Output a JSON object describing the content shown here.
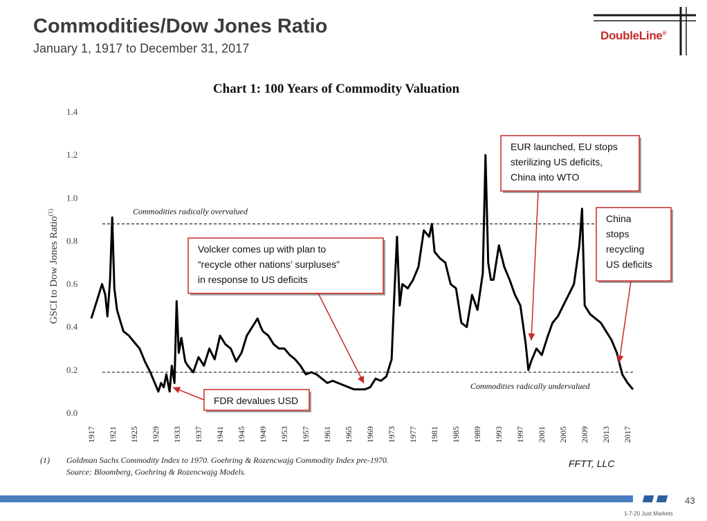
{
  "header": {
    "title": "Commodities/Dow Jones Ratio",
    "subtitle": "January 1, 1917 to December 31, 2017",
    "logo_text": "DoubleLine",
    "logo_mark": "®"
  },
  "chart_data": {
    "type": "line",
    "title": "Chart 1: 100 Years of Commodity Valuation",
    "ylabel": "GSCI to Dow Jones Ratio",
    "ylabel_sup": "(1)",
    "ylim": [
      0,
      1.4
    ],
    "xlim": [
      1917,
      2018
    ],
    "y_ticks": [
      "0.0",
      "0.2",
      "0.4",
      "0.6",
      "0.8",
      "1.0",
      "1.2",
      "1.4"
    ],
    "y_tick_values": [
      0,
      0.2,
      0.4,
      0.6,
      0.8,
      1.0,
      1.2,
      1.4
    ],
    "x_ticks": [
      "1917",
      "1921",
      "1925",
      "1929",
      "1933",
      "1937",
      "1941",
      "1945",
      "1949",
      "1953",
      "1957",
      "1961",
      "1965",
      "1969",
      "1973",
      "1977",
      "1981",
      "1985",
      "1989",
      "1993",
      "1997",
      "2001",
      "2005",
      "2009",
      "2013",
      "2017"
    ],
    "reference_lines": [
      {
        "value": 0.88,
        "label": "Commodities radically overvalued"
      },
      {
        "value": 0.19,
        "label": "Commodities radically undervalued"
      }
    ],
    "series": [
      {
        "x": [
          1917,
          1918,
          1919,
          1919.6,
          1920,
          1920.5,
          1920.9,
          1921.3,
          1921.8,
          1922.5,
          1923,
          1924,
          1925,
          1926,
          1927,
          1928,
          1929,
          1929.5,
          1930,
          1930.5,
          1931,
          1931.6,
          1932,
          1932.5,
          1932.9,
          1933.3,
          1933.8,
          1934.5,
          1935,
          1936,
          1937,
          1938,
          1939,
          1940,
          1941,
          1942,
          1943,
          1944,
          1945,
          1946,
          1947,
          1948,
          1948.6,
          1949,
          1950,
          1951,
          1952,
          1953,
          1954,
          1955,
          1956,
          1957,
          1958,
          1959,
          1960,
          1961,
          1962,
          1963,
          1964,
          1965,
          1966,
          1967,
          1968,
          1969,
          1970,
          1971,
          1972,
          1973,
          1973.5,
          1974,
          1974.5,
          1975,
          1976,
          1977,
          1978,
          1979,
          1980,
          1980.5,
          1981,
          1982,
          1983,
          1984,
          1985,
          1986,
          1987,
          1988,
          1989,
          1990,
          1990.5,
          1991,
          1991.5,
          1992,
          1993,
          1994,
          1995,
          1996,
          1997,
          1998,
          1998.5,
          1999,
          2000,
          2001,
          2002,
          2003,
          2004,
          2005,
          2006,
          2007,
          2008,
          2008.5,
          2009,
          2010,
          2011,
          2012,
          2013,
          2014,
          2015,
          2016,
          2017,
          2018
        ],
        "y": [
          0.44,
          0.52,
          0.6,
          0.55,
          0.45,
          0.62,
          0.91,
          0.58,
          0.48,
          0.42,
          0.38,
          0.36,
          0.33,
          0.3,
          0.24,
          0.19,
          0.13,
          0.1,
          0.14,
          0.12,
          0.18,
          0.1,
          0.22,
          0.14,
          0.52,
          0.28,
          0.35,
          0.24,
          0.22,
          0.19,
          0.26,
          0.22,
          0.3,
          0.25,
          0.36,
          0.32,
          0.3,
          0.24,
          0.28,
          0.36,
          0.4,
          0.44,
          0.4,
          0.38,
          0.36,
          0.32,
          0.3,
          0.3,
          0.27,
          0.25,
          0.22,
          0.18,
          0.19,
          0.18,
          0.16,
          0.14,
          0.15,
          0.14,
          0.13,
          0.12,
          0.11,
          0.11,
          0.11,
          0.12,
          0.16,
          0.15,
          0.17,
          0.25,
          0.55,
          0.82,
          0.5,
          0.6,
          0.58,
          0.62,
          0.68,
          0.85,
          0.82,
          0.88,
          0.75,
          0.72,
          0.7,
          0.6,
          0.58,
          0.42,
          0.4,
          0.55,
          0.48,
          0.65,
          1.2,
          0.7,
          0.62,
          0.62,
          0.78,
          0.68,
          0.62,
          0.55,
          0.5,
          0.32,
          0.2,
          0.24,
          0.3,
          0.27,
          0.35,
          0.42,
          0.45,
          0.5,
          0.55,
          0.6,
          0.78,
          0.95,
          0.5,
          0.46,
          0.44,
          0.42,
          0.38,
          0.34,
          0.28,
          0.18,
          0.14,
          0.11
        ]
      }
    ],
    "annotations": [
      {
        "text": [
          "FDR devalues USD"
        ]
      },
      {
        "text": [
          "Volcker comes up with plan to",
          "“recycle other nations’ surpluses”",
          "in response to US deficits"
        ]
      },
      {
        "text": [
          "EUR launched, EU stops",
          "sterilizing US deficits,",
          "China into WTO"
        ]
      },
      {
        "text": [
          "China",
          "stops",
          "recycling",
          "US deficits"
        ]
      }
    ]
  },
  "footnotes": {
    "marker": "(1)",
    "line1": "Goldman Sachs Commodity Index to 1970.  Goehring & Rozencwajg Commodity Index pre-1970.",
    "line2": "Source: Bloomberg, Goehring & Rozencwajg Models.",
    "credit": "FFTT, LLC"
  },
  "footer": {
    "page_number": "43",
    "note": "1-7-20 Just Markets"
  },
  "colors": {
    "accent_red": "#c62828",
    "footer_blue": "#4a7dbf",
    "line": "#000000"
  }
}
